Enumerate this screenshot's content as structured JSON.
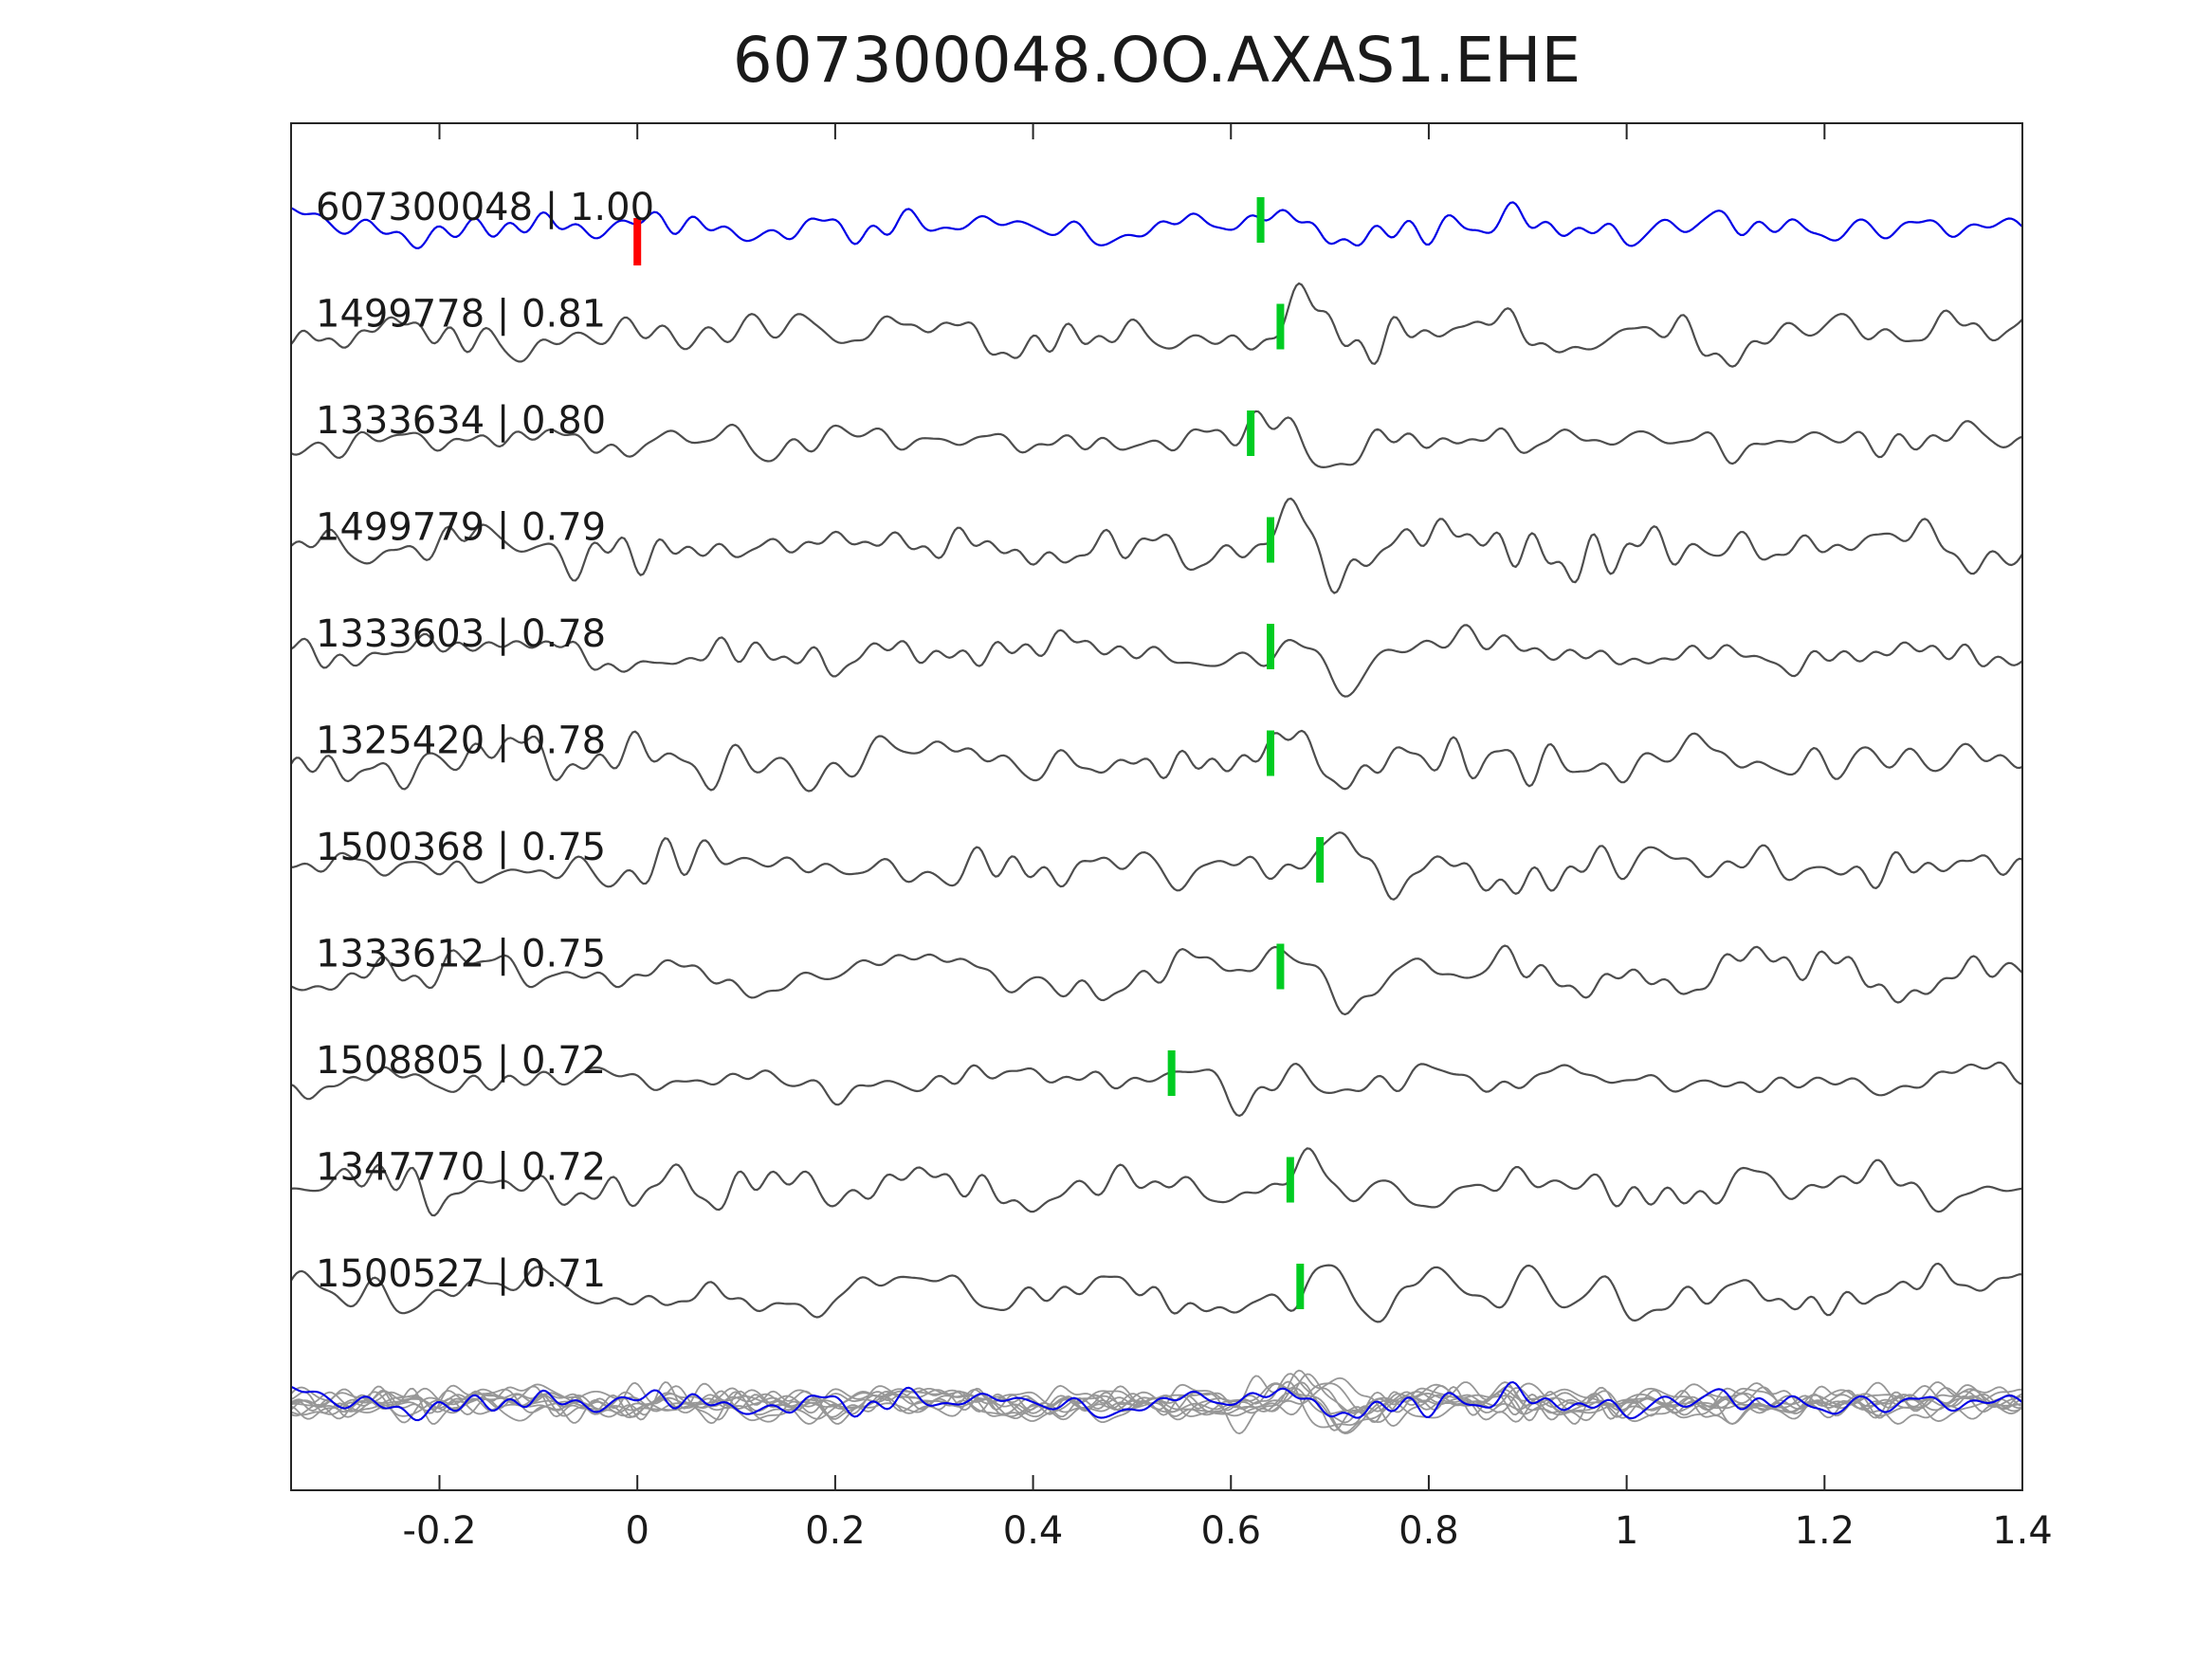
{
  "title": "607300048.OO.AXAS1.EHE",
  "chart_data": {
    "type": "line",
    "subtype": "seismic-waveform-stack",
    "title": "607300048.OO.AXAS1.EHE",
    "xlabel": "",
    "ylabel": "",
    "xlim": [
      -0.35,
      1.4
    ],
    "x_ticks": [
      -0.2,
      0,
      0.2,
      0.4,
      0.6,
      0.8,
      1,
      1.2,
      1.4
    ],
    "x_tick_labels": [
      "-0.2",
      "0",
      "0.2",
      "0.4",
      "0.6",
      "0.8",
      "1",
      "1.2",
      "1.4"
    ],
    "grid": false,
    "legend": "none",
    "colors": {
      "template_trace": "#0000e6",
      "detection_trace": "#4d4d4d",
      "overlay_trace": "#979797",
      "pick_marker": "#00cc22",
      "template_marker": "#ff0000",
      "frame": "#262626",
      "text": "#1a1a1a"
    },
    "traces": [
      {
        "event_id": "607300048",
        "correlation": 1.0,
        "label": "607300048 | 1.00",
        "is_template": true,
        "template_mark_time": 0.0,
        "pick_time": 0.63
      },
      {
        "event_id": "1499778",
        "correlation": 0.81,
        "label": "1499778 | 0.81",
        "pick_time": 0.65
      },
      {
        "event_id": "1333634",
        "correlation": 0.8,
        "label": "1333634 | 0.80",
        "pick_time": 0.62
      },
      {
        "event_id": "1499779",
        "correlation": 0.79,
        "label": "1499779 | 0.79",
        "pick_time": 0.64
      },
      {
        "event_id": "1333603",
        "correlation": 0.78,
        "label": "1333603 | 0.78",
        "pick_time": 0.64
      },
      {
        "event_id": "1325420",
        "correlation": 0.78,
        "label": "1325420 | 0.78",
        "pick_time": 0.64
      },
      {
        "event_id": "1500368",
        "correlation": 0.75,
        "label": "1500368 | 0.75",
        "pick_time": 0.69
      },
      {
        "event_id": "1333612",
        "correlation": 0.75,
        "label": "1333612 | 0.75",
        "pick_time": 0.65
      },
      {
        "event_id": "1508805",
        "correlation": 0.72,
        "label": "1508805 | 0.72",
        "pick_time": 0.54
      },
      {
        "event_id": "1347770",
        "correlation": 0.72,
        "label": "1347770 | 0.72",
        "pick_time": 0.66
      },
      {
        "event_id": "1500527",
        "correlation": 0.71,
        "label": "1500527 | 0.71",
        "pick_time": 0.67
      }
    ],
    "overlay_row": {
      "description": "All traces overlaid at bottom of plot; gray detections with blue template on top"
    }
  }
}
